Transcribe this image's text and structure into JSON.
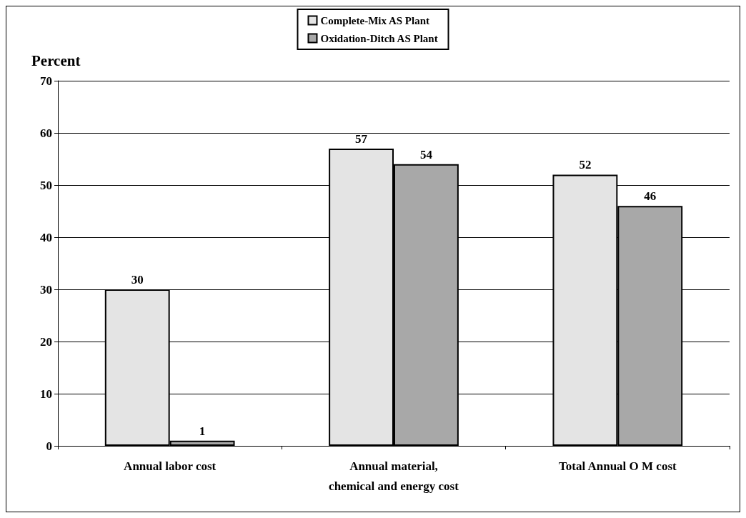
{
  "chart_data": {
    "type": "bar",
    "ylabel": "Percent",
    "categories": [
      "Annual labor cost",
      "Annual material,\nchemical and energy cost",
      "Total Annual O M cost"
    ],
    "series": [
      {
        "name": "Complete-Mix AS Plant",
        "color": "#e4e4e4",
        "values": [
          30,
          57,
          52
        ]
      },
      {
        "name": "Oxidation-Ditch AS Plant",
        "color": "#a8a8a8",
        "values": [
          1,
          54,
          46
        ]
      }
    ],
    "ylim": [
      0,
      70
    ],
    "yticks": [
      0,
      10,
      20,
      30,
      40,
      50,
      60,
      70
    ],
    "grid": "y",
    "legend": "top",
    "data_labels": true
  }
}
